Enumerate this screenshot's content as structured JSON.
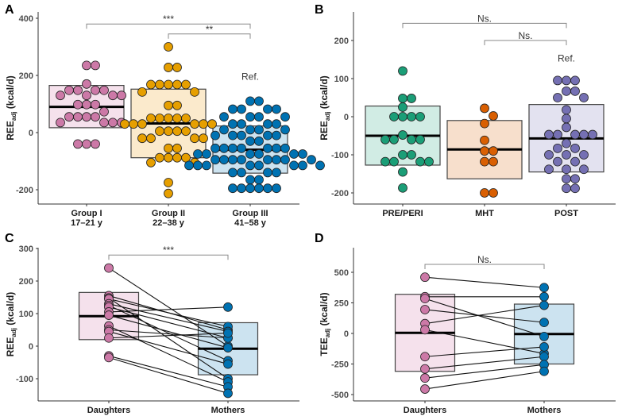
{
  "chart_data": [
    {
      "panel": "A",
      "type": "box-beeswarm",
      "ylabel": {
        "main": "REE",
        "sub": "adj",
        "unit": " (kcal/d)"
      },
      "yticks": [
        400,
        200,
        0,
        -200
      ],
      "groups": [
        {
          "label": [
            "Group I",
            "17–21 y"
          ],
          "color": "#cc79a7",
          "fill": "#f5e1ec",
          "box": {
            "q1": 17,
            "median": 90,
            "q3": 165
          },
          "values": [
            235,
            235,
            170,
            148,
            148,
            148,
            148,
            130,
            130,
            130,
            130,
            98,
            98,
            98,
            73,
            55,
            55,
            55,
            55,
            35,
            35,
            35,
            35,
            -40,
            -40,
            -40
          ]
        },
        {
          "label": [
            "Group II",
            "22–38 y"
          ],
          "color": "#e69f00",
          "fill": "#fbeacc",
          "box": {
            "q1": -88,
            "median": 32,
            "q3": 152
          },
          "values": [
            300,
            228,
            228,
            168,
            168,
            168,
            168,
            168,
            142,
            142,
            95,
            95,
            50,
            50,
            50,
            50,
            50,
            30,
            30,
            30,
            30,
            30,
            30,
            5,
            5,
            5,
            5,
            -20,
            -20,
            -20,
            -20,
            -55,
            -55,
            -88,
            -88,
            -88,
            -88,
            -105,
            -105,
            -175,
            -213
          ]
        },
        {
          "label": [
            "Group III",
            "41–58 y"
          ],
          "color": "#0072b2",
          "fill": "#cce3f0",
          "box": {
            "q1": -142,
            "median": -60,
            "q3": 23
          },
          "values": [
            110,
            110,
            82,
            82,
            82,
            82,
            55,
            55,
            55,
            55,
            30,
            30,
            30,
            30,
            10,
            10,
            10,
            10,
            -10,
            -10,
            -10,
            -10,
            -10,
            -30,
            -30,
            -55,
            -55,
            -55,
            -55,
            -55,
            -55,
            -55,
            -75,
            -75,
            -75,
            -75,
            -75,
            -75,
            -95,
            -95,
            -95,
            -95,
            -95,
            -95,
            -95,
            -95,
            -115,
            -115,
            -115,
            -115,
            -115,
            -115,
            -115,
            -115,
            -140,
            -140,
            -140,
            -140,
            -165,
            -165,
            -195,
            -195,
            -195,
            -195,
            -195,
            -195
          ]
        }
      ],
      "comparisons": [
        {
          "from": 0,
          "to": 2,
          "y": 380,
          "label": "***"
        },
        {
          "from": 1,
          "to": 2,
          "y": 345,
          "label": "**"
        }
      ],
      "reference": {
        "group": 2,
        "y": 185,
        "label": "Ref."
      }
    },
    {
      "panel": "B",
      "type": "box-beeswarm",
      "ylabel": {
        "main": "REE",
        "sub": "adj",
        "unit": " (kcal/d)"
      },
      "yticks": [
        200,
        100,
        0,
        -100,
        -200
      ],
      "groups": [
        {
          "label": [
            "PRE/PERI"
          ],
          "color": "#1b9e77",
          "fill": "#d1ece4",
          "box": {
            "q1": -127,
            "median": -50,
            "q3": 28
          },
          "values": [
            120,
            48,
            48,
            25,
            0,
            0,
            0,
            0,
            -48,
            -60,
            -60,
            -60,
            -60,
            -100,
            -100,
            -118,
            -118,
            -118,
            -118,
            -145,
            -187
          ]
        },
        {
          "label": [
            "MHT"
          ],
          "color": "#d95f02",
          "fill": "#f7dfcc",
          "box": {
            "q1": -163,
            "median": -86,
            "q3": -10
          },
          "values": [
            22,
            2,
            -18,
            -62,
            -90,
            -90,
            -118,
            -118,
            -200,
            -200
          ]
        },
        {
          "label": [
            "POST"
          ],
          "color": "#7570b3",
          "fill": "#e3e2f0",
          "box": {
            "q1": -145,
            "median": -57,
            "q3": 32
          },
          "values": [
            95,
            95,
            95,
            67,
            67,
            50,
            50,
            18,
            -5,
            -28,
            -47,
            -47,
            -47,
            -47,
            -47,
            -70,
            -83,
            -83,
            -100,
            -100,
            -100,
            -118,
            -118,
            -138,
            -138,
            -138,
            -163,
            -163,
            -188,
            -188
          ]
        }
      ],
      "comparisons": [
        {
          "from": 0,
          "to": 2,
          "y": 245,
          "label": "Ns."
        },
        {
          "from": 1,
          "to": 2,
          "y": 200,
          "label": "Ns."
        }
      ],
      "reference": {
        "group": 2,
        "y": 145,
        "label": "Ref."
      }
    },
    {
      "panel": "C",
      "type": "paired-box",
      "ylabel": {
        "main": "REE",
        "sub": "adj",
        "unit": " (kcal/d)"
      },
      "yticks": [
        300,
        200,
        100,
        0,
        -100
      ],
      "groups": [
        {
          "label": [
            "Daughters"
          ],
          "color": "#cc79a7",
          "fill": "#f5e1ec",
          "box": {
            "q1": 20,
            "median": 92,
            "q3": 165
          }
        },
        {
          "label": [
            "Mothers"
          ],
          "color": "#0072b2",
          "fill": "#cce3f0",
          "box": {
            "q1": -88,
            "median": -8,
            "q3": 72
          }
        }
      ],
      "pairs": [
        [
          240,
          0
        ],
        [
          155,
          50
        ],
        [
          148,
          -100
        ],
        [
          145,
          60
        ],
        [
          130,
          45
        ],
        [
          125,
          -45
        ],
        [
          120,
          25
        ],
        [
          105,
          120
        ],
        [
          95,
          -5
        ],
        [
          62,
          -110
        ],
        [
          50,
          25
        ],
        [
          45,
          -55
        ],
        [
          25,
          40
        ],
        [
          -30,
          -125
        ],
        [
          -35,
          -145
        ]
      ],
      "comparisons": [
        {
          "from": 0,
          "to": 1,
          "y": 280,
          "label": "***"
        }
      ]
    },
    {
      "panel": "D",
      "type": "paired-box",
      "ylabel": {
        "main": "TEE",
        "sub": "adj",
        "unit": " (kcal/d)"
      },
      "yticks": [
        500,
        250,
        0,
        -250,
        -500
      ],
      "groups": [
        {
          "label": [
            "Daughters"
          ],
          "color": "#cc79a7",
          "fill": "#f5e1ec",
          "box": {
            "q1": -310,
            "median": 5,
            "q3": 320
          }
        },
        {
          "label": [
            "Mothers"
          ],
          "color": "#0072b2",
          "fill": "#cce3f0",
          "box": {
            "q1": -250,
            "median": -5,
            "q3": 240
          }
        }
      ],
      "pairs": [
        [
          460,
          375
        ],
        [
          300,
          300
        ],
        [
          285,
          -25
        ],
        [
          195,
          90
        ],
        [
          80,
          230
        ],
        [
          30,
          -165
        ],
        [
          -190,
          -110
        ],
        [
          -290,
          -190
        ],
        [
          -365,
          -255
        ],
        [
          -455,
          -310
        ]
      ],
      "comparisons": [
        {
          "from": 0,
          "to": 1,
          "y": 565,
          "label": "Ns."
        }
      ]
    }
  ]
}
